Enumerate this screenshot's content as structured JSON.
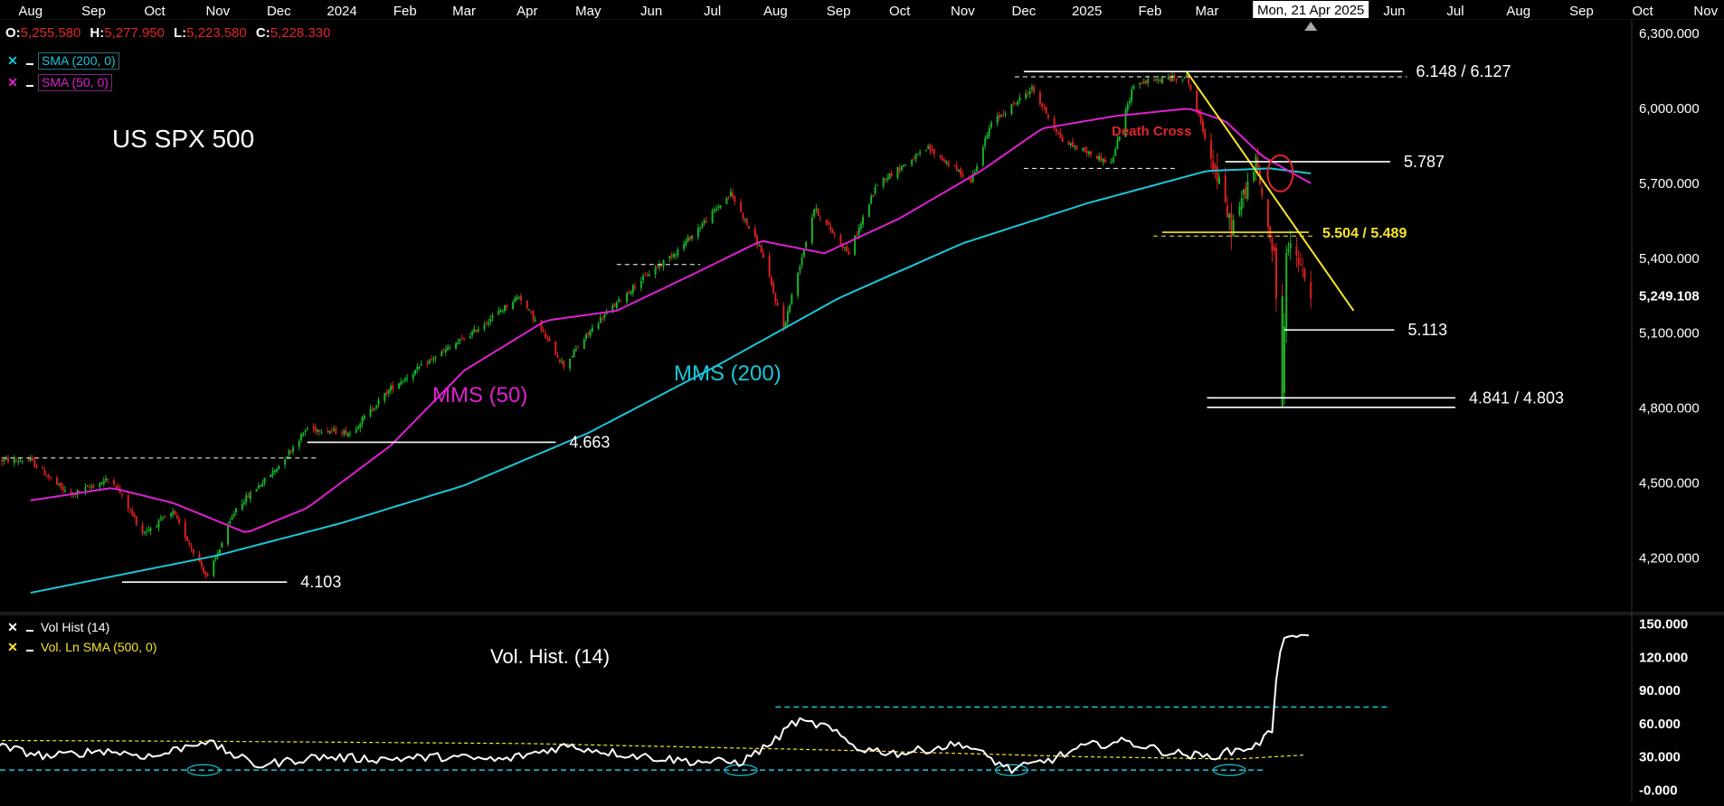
{
  "header": {
    "ohlc": [
      {
        "key": "O:",
        "value": "5,255.580"
      },
      {
        "key": "H:",
        "value": "5,277.950"
      },
      {
        "key": "L:",
        "value": "5,223.580"
      },
      {
        "key": "C:",
        "value": "5,228.330"
      }
    ],
    "crosshair_date": "Mon, 21 Apr 2025"
  },
  "legend_price": [
    {
      "label": "SMA (200, 0)",
      "color": "#19c6d8",
      "box": "cyan"
    },
    {
      "label": "SMA (50, 0)",
      "color": "#e020d0",
      "box": "mag"
    }
  ],
  "legend_volume": [
    {
      "label": "Vol Hist (14)",
      "color": "#ffffff"
    },
    {
      "label": "Vol. Ln SMA (500, 0)",
      "color": "#f5e52a"
    }
  ],
  "chart_data": {
    "type": "candlestick",
    "title": "US SPX 500",
    "instrument": "US SPX 500",
    "time_axis": [
      "Aug",
      "Sep",
      "Oct",
      "Nov",
      "Dec",
      "2024",
      "Feb",
      "Mar",
      "Apr",
      "May",
      "Jun",
      "Jul",
      "Aug",
      "Sep",
      "Oct",
      "Nov",
      "Dec",
      "2025",
      "Feb",
      "Mar",
      "Apr",
      "May",
      "Jun",
      "Jul",
      "Aug",
      "Sep",
      "Oct",
      "Nov"
    ],
    "y_ticks": [
      "6,300.000",
      "6,000.000",
      "5,700.000",
      "5,400.000",
      "5,100.000",
      "4,800.000",
      "4,500.000",
      "4,200.000"
    ],
    "y_tick_values": [
      6300,
      6000,
      5700,
      5400,
      5100,
      4800,
      4500,
      4200
    ],
    "ylim": [
      3995,
      6355
    ],
    "last_price_label": "5,249.108",
    "last_price": 5249.108,
    "price_path": [
      [
        "2023-08-01",
        4590
      ],
      [
        "2023-08-20",
        4450
      ],
      [
        "2023-09-10",
        4520
      ],
      [
        "2023-09-25",
        4300
      ],
      [
        "2023-10-10",
        4380
      ],
      [
        "2023-10-27",
        4120
      ],
      [
        "2023-11-10",
        4400
      ],
      [
        "2023-11-30",
        4560
      ],
      [
        "2023-12-15",
        4720
      ],
      [
        "2024-01-05",
        4700
      ],
      [
        "2024-01-25",
        4880
      ],
      [
        "2024-02-15",
        5000
      ],
      [
        "2024-03-05",
        5100
      ],
      [
        "2024-03-28",
        5250
      ],
      [
        "2024-04-19",
        4970
      ],
      [
        "2024-05-05",
        5140
      ],
      [
        "2024-05-25",
        5300
      ],
      [
        "2024-06-15",
        5440
      ],
      [
        "2024-07-10",
        5660
      ],
      [
        "2024-07-25",
        5430
      ],
      [
        "2024-08-05",
        5120
      ],
      [
        "2024-08-20",
        5600
      ],
      [
        "2024-09-06",
        5420
      ],
      [
        "2024-09-20",
        5700
      ],
      [
        "2024-10-15",
        5840
      ],
      [
        "2024-11-05",
        5710
      ],
      [
        "2024-11-15",
        5940
      ],
      [
        "2024-12-05",
        6080
      ],
      [
        "2024-12-20",
        5870
      ],
      [
        "2025-01-13",
        5780
      ],
      [
        "2025-01-24",
        6100
      ],
      [
        "2025-02-19",
        6130
      ],
      [
        "2025-03-04",
        5780
      ],
      [
        "2025-03-13",
        5520
      ],
      [
        "2025-03-25",
        5780
      ],
      [
        "2025-04-03",
        5400
      ],
      [
        "2025-04-07",
        4840
      ],
      [
        "2025-04-09",
        5450
      ],
      [
        "2025-04-14",
        5400
      ],
      [
        "2025-04-21",
        5250
      ]
    ],
    "sma50_path": [
      [
        "2023-08-01",
        4430
      ],
      [
        "2023-09-10",
        4480
      ],
      [
        "2023-10-10",
        4420
      ],
      [
        "2023-11-15",
        4300
      ],
      [
        "2023-12-15",
        4400
      ],
      [
        "2024-01-25",
        4650
      ],
      [
        "2024-03-01",
        4950
      ],
      [
        "2024-04-10",
        5150
      ],
      [
        "2024-05-15",
        5190
      ],
      [
        "2024-06-20",
        5330
      ],
      [
        "2024-07-25",
        5470
      ],
      [
        "2024-08-25",
        5420
      ],
      [
        "2024-10-01",
        5560
      ],
      [
        "2024-11-10",
        5750
      ],
      [
        "2024-12-10",
        5920
      ],
      [
        "2025-01-15",
        5970
      ],
      [
        "2025-02-20",
        6000
      ],
      [
        "2025-03-10",
        5950
      ],
      [
        "2025-03-28",
        5810
      ],
      [
        "2025-04-21",
        5700
      ]
    ],
    "sma200_path": [
      [
        "2023-08-01",
        4060
      ],
      [
        "2023-11-01",
        4210
      ],
      [
        "2024-01-01",
        4340
      ],
      [
        "2024-03-01",
        4490
      ],
      [
        "2024-05-01",
        4700
      ],
      [
        "2024-07-01",
        4960
      ],
      [
        "2024-09-01",
        5240
      ],
      [
        "2024-11-01",
        5460
      ],
      [
        "2025-01-01",
        5620
      ],
      [
        "2025-03-01",
        5750
      ],
      [
        "2025-04-01",
        5760
      ],
      [
        "2025-04-21",
        5740
      ]
    ],
    "annotations": [
      {
        "text": "US SPX 500",
        "color": "#ffffff"
      },
      {
        "text": "MMS (50)",
        "color": "#e020d0"
      },
      {
        "text": "MMS (200)",
        "color": "#19c6d8"
      },
      {
        "text": "Death Cross",
        "color": "#e0252b"
      },
      {
        "text": "Vol. Hist. (14)",
        "color": "#ffffff"
      }
    ],
    "levels": [
      {
        "label": "6.148 / 6.127",
        "values": [
          6148,
          6127
        ],
        "x_from": "2024-12-01",
        "x_to": "2025-06-05",
        "color": "#ffffff",
        "dashed_second": true
      },
      {
        "label": "5.787",
        "values": [
          5787
        ],
        "x_from": "2025-03-10",
        "x_to": "2025-05-30",
        "color": "#ffffff"
      },
      {
        "label": "5.504 / 5.489",
        "values": [
          5504,
          5489
        ],
        "x_from": "2025-02-07",
        "x_to": "2025-04-20",
        "color": "#f5e52a",
        "dashed_second": true
      },
      {
        "label": "5.113",
        "values": [
          5113
        ],
        "x_from": "2025-04-08",
        "x_to": "2025-06-01",
        "color": "#ffffff"
      },
      {
        "label": "4.841 / 4.803",
        "values": [
          4841,
          4803
        ],
        "x_from": "2025-03-01",
        "x_to": "2025-07-01",
        "color": "#ffffff"
      },
      {
        "label": "4.663",
        "values": [
          4663
        ],
        "x_from": "2023-12-15",
        "x_to": "2024-04-15",
        "color": "#ffffff"
      },
      {
        "label": "4.103",
        "values": [
          4103
        ],
        "x_from": "2023-09-15",
        "x_to": "2023-12-05",
        "color": "#ffffff"
      }
    ],
    "dashed_levels": [
      {
        "value": 4600,
        "x_from": "2023-06-20",
        "x_to": "2023-12-20"
      },
      {
        "value": 5760,
        "x_from": "2024-12-01",
        "x_to": "2025-02-15"
      },
      {
        "value": 5375,
        "x_from": "2024-05-15",
        "x_to": "2024-06-25"
      }
    ],
    "trendline": {
      "from": [
        "2025-02-19",
        6148
      ],
      "to": [
        "2025-05-12",
        5190
      ],
      "color": "#f5e52a"
    },
    "death_cross": {
      "date": "2025-04-06",
      "value": 5740
    },
    "volume_panel": {
      "y_ticks": [
        "150.000",
        "120.000",
        "90.000",
        "60.000",
        "30.000",
        "-0.000"
      ],
      "y_tick_values": [
        150,
        120,
        90,
        60,
        30,
        0
      ],
      "ylim": [
        -3,
        157
      ],
      "vol_hist_path": [
        [
          "2023-06-20",
          26
        ],
        [
          "2023-07-15",
          40
        ],
        [
          "2023-08-10",
          30
        ],
        [
          "2023-09-05",
          36
        ],
        [
          "2023-10-01",
          30
        ],
        [
          "2023-10-25",
          45
        ],
        [
          "2023-11-20",
          22
        ],
        [
          "2023-12-20",
          30
        ],
        [
          "2024-01-20",
          28
        ],
        [
          "2024-02-20",
          30
        ],
        [
          "2024-03-20",
          27
        ],
        [
          "2024-04-20",
          40
        ],
        [
          "2024-05-20",
          32
        ],
        [
          "2024-06-20",
          26
        ],
        [
          "2024-07-15",
          25
        ],
        [
          "2024-08-01",
          45
        ],
        [
          "2024-08-10",
          62
        ],
        [
          "2024-08-25",
          58
        ],
        [
          "2024-09-10",
          38
        ],
        [
          "2024-10-01",
          33
        ],
        [
          "2024-11-01",
          42
        ],
        [
          "2024-11-25",
          18
        ],
        [
          "2024-12-15",
          28
        ],
        [
          "2025-01-01",
          40
        ],
        [
          "2025-01-20",
          44
        ],
        [
          "2025-02-10",
          34
        ],
        [
          "2025-03-01",
          30
        ],
        [
          "2025-03-25",
          40
        ],
        [
          "2025-04-03",
          55
        ],
        [
          "2025-04-04",
          100
        ],
        [
          "2025-04-07",
          138
        ],
        [
          "2025-04-21",
          140
        ]
      ],
      "vol_sma_path": [
        [
          "2023-06-20",
          45
        ],
        [
          "2023-11-01",
          44
        ],
        [
          "2024-04-01",
          42
        ],
        [
          "2024-09-01",
          36
        ],
        [
          "2025-01-01",
          30
        ],
        [
          "2025-03-15",
          28
        ],
        [
          "2025-04-21",
          32
        ]
      ],
      "upper_band": 75,
      "lower_band": 18
    }
  }
}
